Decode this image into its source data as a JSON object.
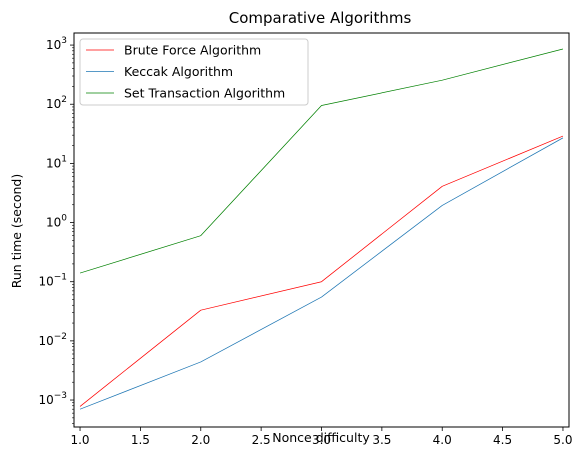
{
  "chart_data": {
    "type": "line",
    "title": "Comparative Algorithms",
    "xlabel": "Nonce difficulty",
    "ylabel": "Run time (second)",
    "y_scale": "log",
    "xlim": [
      0.95,
      5.05
    ],
    "ylim": [
      0.00035,
      1600
    ],
    "x_ticks": [
      1.0,
      1.5,
      2.0,
      2.5,
      3.0,
      3.5,
      4.0,
      4.5,
      5.0
    ],
    "x_tick_labels": [
      "1.0",
      "1.5",
      "2.0",
      "2.5",
      "3.0",
      "3.5",
      "4.0",
      "4.5",
      "5.0"
    ],
    "y_ticks": [
      -3,
      -2,
      -1,
      0,
      1,
      2,
      3
    ],
    "y_tick_base": "10",
    "grid": false,
    "legend_position": "top-left",
    "x": [
      1,
      2,
      3,
      4,
      5
    ],
    "series": [
      {
        "name": "Brute Force Algorithm",
        "color": "#ff0000",
        "values": [
          0.00078,
          0.033,
          0.1,
          4.1,
          29
        ]
      },
      {
        "name": "Keccak Algorithm",
        "color": "#1f77b4",
        "values": [
          0.0007,
          0.0044,
          0.055,
          1.95,
          27
        ]
      },
      {
        "name": "Set Transaction Algorithm",
        "color": "#008000",
        "values": [
          0.14,
          0.6,
          95,
          255,
          860
        ]
      }
    ]
  }
}
